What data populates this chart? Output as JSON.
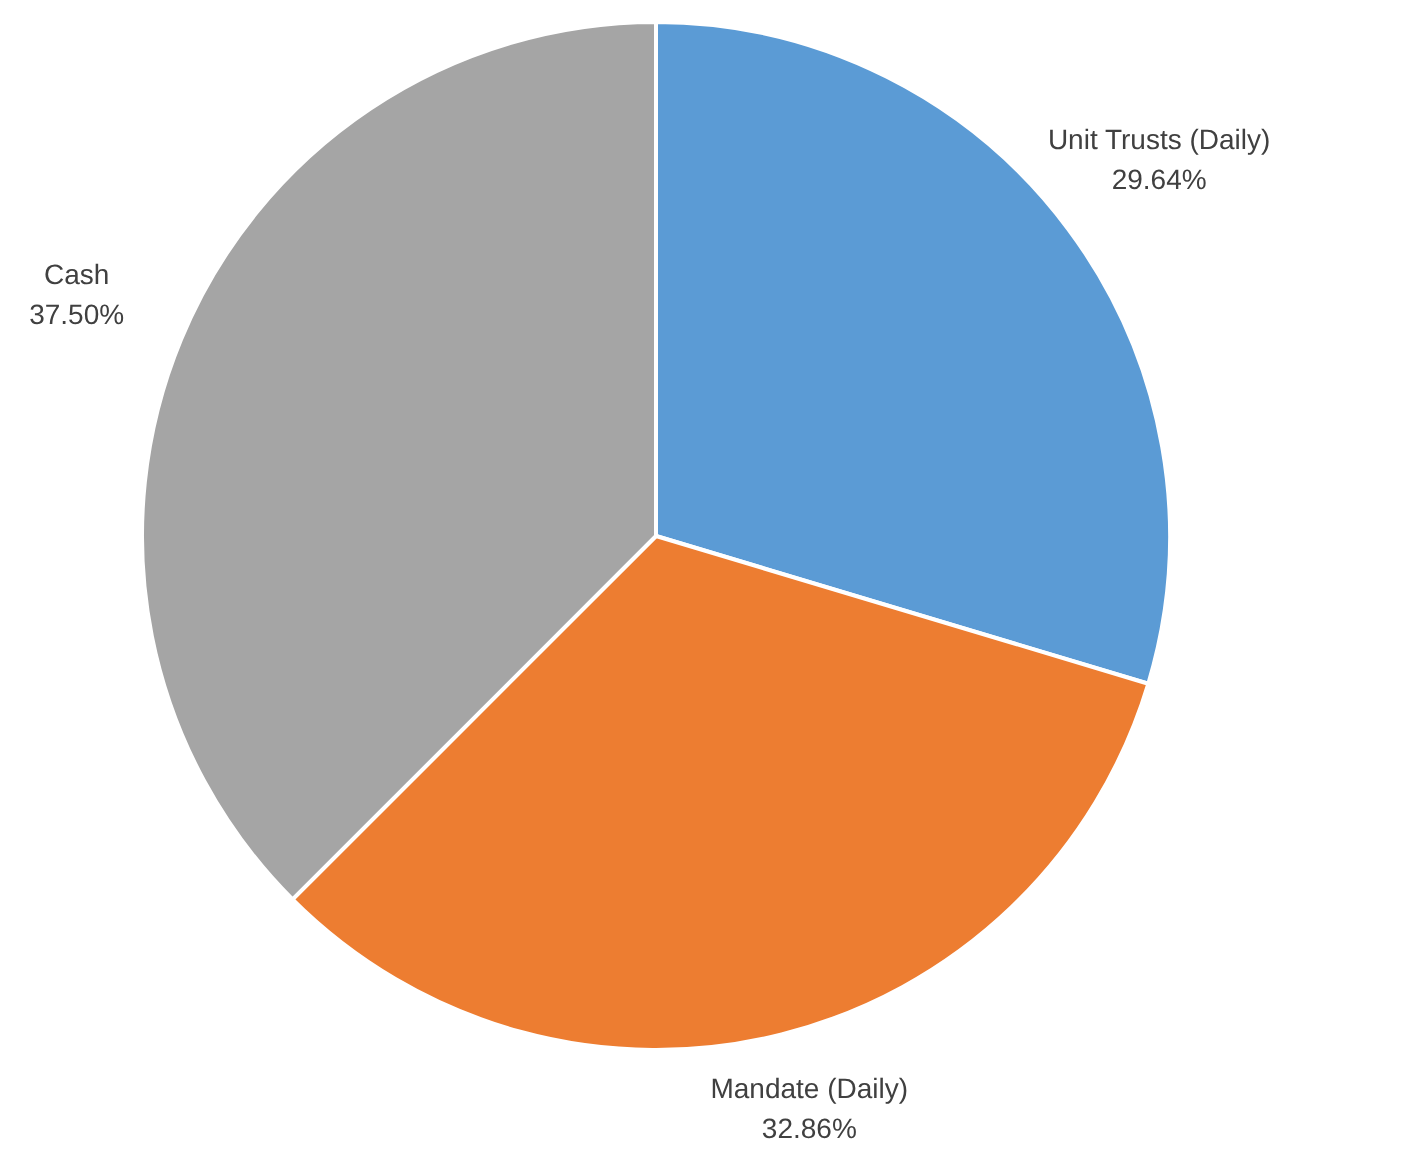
{
  "chart_data": {
    "type": "pie",
    "categories": [
      "Unit Trusts (Daily)",
      "Mandate (Daily)",
      "Cash"
    ],
    "values": [
      29.64,
      32.86,
      37.5
    ],
    "colors": [
      "#5b9bd5",
      "#ed7d31",
      "#a5a5a5"
    ],
    "value_labels": [
      "29.64%",
      "32.86%",
      "37.50%"
    ],
    "legend": false
  }
}
